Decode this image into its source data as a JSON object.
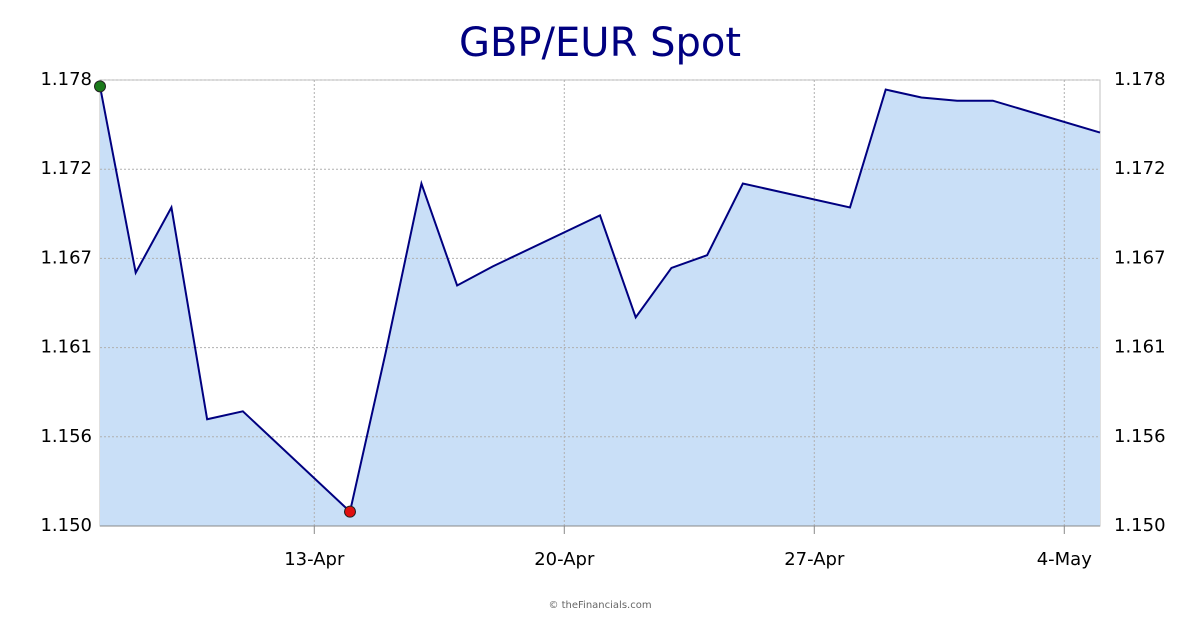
{
  "chart_data": {
    "type": "area",
    "title": "GBP/EUR Spot",
    "footer": "© theFinancials.com",
    "x": [
      "7-Apr",
      "8-Apr",
      "9-Apr",
      "10-Apr",
      "11-Apr",
      "14-Apr",
      "15-Apr",
      "16-Apr",
      "17-Apr",
      "18-Apr",
      "21-Apr",
      "22-Apr",
      "23-Apr",
      "24-Apr",
      "25-Apr",
      "28-Apr",
      "29-Apr",
      "30-Apr",
      "1-May",
      "2-May",
      "5-May"
    ],
    "series": [
      {
        "name": "GBP/EUR",
        "color": "#000080",
        "fill": "#c9dff7",
        "values": [
          1.1776,
          1.1659,
          1.17,
          1.1567,
          1.1572,
          1.1509,
          1.1609,
          1.1715,
          1.1651,
          1.1663,
          1.1695,
          1.1631,
          1.1662,
          1.167,
          1.1715,
          1.17,
          1.1774,
          1.1769,
          1.1767,
          1.1767,
          1.1747
        ]
      }
    ],
    "xlim": [
      "7-Apr",
      "5-May"
    ],
    "xticks": [
      "13-Apr",
      "20-Apr",
      "27-Apr",
      "4-May"
    ],
    "ylim": [
      1.15,
      1.178
    ],
    "yticks": [
      {
        "value": 1.15,
        "label": "1.150"
      },
      {
        "value": 1.1556,
        "label": "1.156"
      },
      {
        "value": 1.1612,
        "label": "1.161"
      },
      {
        "value": 1.1668,
        "label": "1.167"
      },
      {
        "value": 1.1724,
        "label": "1.172"
      },
      1.178
    ],
    "grid": true,
    "max_marker_color": "#1a7a1a",
    "min_marker_color": "#e01010"
  }
}
